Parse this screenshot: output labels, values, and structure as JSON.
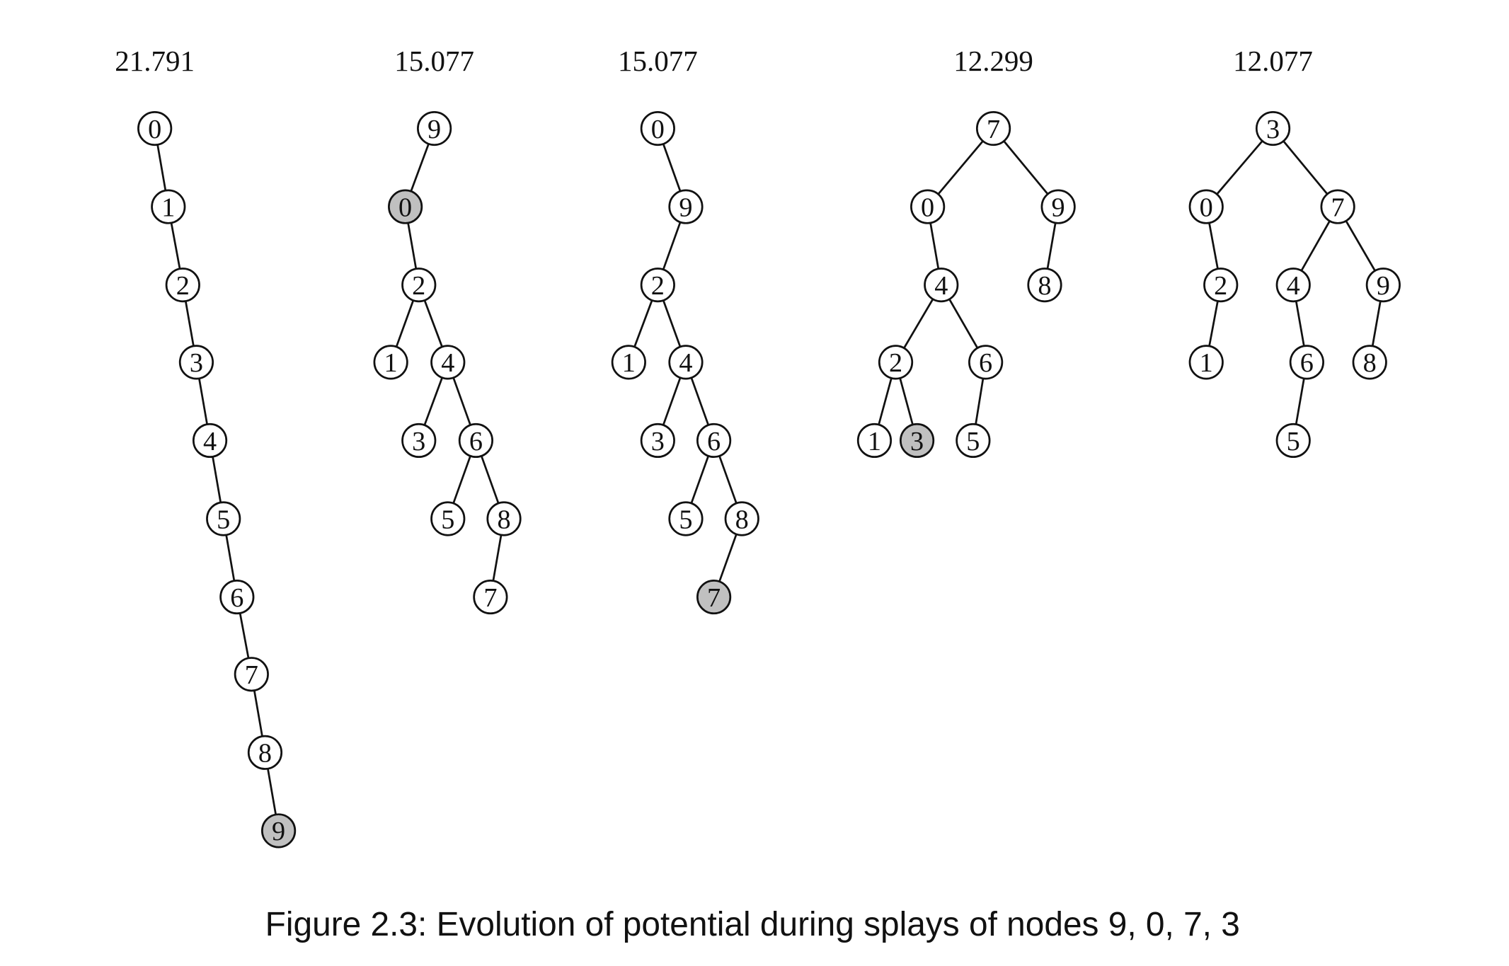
{
  "trees": [
    {
      "potential": "21.791",
      "nodes": [
        {
          "label": "0"
        },
        {
          "label": "1"
        },
        {
          "label": "2"
        },
        {
          "label": "3"
        },
        {
          "label": "4"
        },
        {
          "label": "5"
        },
        {
          "label": "6"
        },
        {
          "label": "7"
        },
        {
          "label": "8"
        },
        {
          "label": "9",
          "fill": "#c0c0c0"
        }
      ]
    },
    {
      "potential": "15.077",
      "nodes": [
        {
          "label": "9"
        },
        {
          "label": "0",
          "fill": "#c0c0c0"
        },
        {
          "label": "2"
        },
        {
          "label": "1"
        },
        {
          "label": "4"
        },
        {
          "label": "3"
        },
        {
          "label": "6"
        },
        {
          "label": "5"
        },
        {
          "label": "8"
        },
        {
          "label": "7"
        }
      ]
    },
    {
      "potential": "15.077",
      "nodes": [
        {
          "label": "0"
        },
        {
          "label": "9"
        },
        {
          "label": "2"
        },
        {
          "label": "1"
        },
        {
          "label": "4"
        },
        {
          "label": "3"
        },
        {
          "label": "6"
        },
        {
          "label": "5"
        },
        {
          "label": "8"
        },
        {
          "label": "7",
          "fill": "#c0c0c0"
        }
      ]
    },
    {
      "potential": "12.299",
      "nodes": [
        {
          "label": "7"
        },
        {
          "label": "0"
        },
        {
          "label": "9"
        },
        {
          "label": "4"
        },
        {
          "label": "8"
        },
        {
          "label": "2"
        },
        {
          "label": "6"
        },
        {
          "label": "1"
        },
        {
          "label": "3",
          "fill": "#c0c0c0"
        },
        {
          "label": "5"
        }
      ]
    },
    {
      "potential": "12.077",
      "nodes": [
        {
          "label": "3"
        },
        {
          "label": "0"
        },
        {
          "label": "7"
        },
        {
          "label": "2"
        },
        {
          "label": "4"
        },
        {
          "label": "9"
        },
        {
          "label": "1"
        },
        {
          "label": "6"
        },
        {
          "label": "8"
        },
        {
          "label": "5"
        }
      ]
    }
  ],
  "caption": "Figure 2.3: Evolution of potential during splays of nodes 9, 0, 7, 3"
}
